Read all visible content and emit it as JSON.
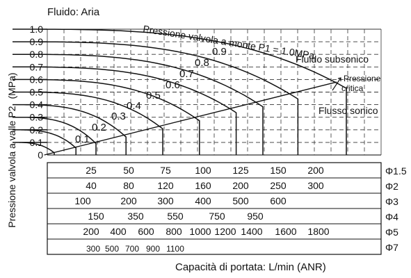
{
  "chart_data": {
    "type": "line",
    "title": "Fluido: Aria",
    "xlabel": "Capacità di portata: L/min (ANR)",
    "ylabel": "Pressione valvola a valle P2",
    "yunit": "(MPa)",
    "ylim": [
      0,
      1.0
    ],
    "yticks": [
      "0",
      "0.1",
      "0.2",
      "0.3",
      "0.4",
      "0.5",
      "0.6",
      "0.7",
      "0.8",
      "0.9",
      "1.0"
    ],
    "grid": true,
    "curve_header": "Pressione valvola a monte P1 = 1.0MPa",
    "zone_labels": {
      "subsonic": "Fluido subsonico",
      "critical_line1": "Pressione",
      "critical_line2": "critica",
      "sonic": "Flusso sonico"
    },
    "series": [
      {
        "name": "0.1",
        "p1": 0.1,
        "max_flow_phi1_5": 25
      },
      {
        "name": "0.2",
        "p1": 0.2,
        "max_flow_phi1_5": 38
      },
      {
        "name": "0.3",
        "p1": 0.3,
        "max_flow_phi1_5": 50
      },
      {
        "name": "0.4",
        "p1": 0.4,
        "max_flow_phi1_5": 68
      },
      {
        "name": "0.5",
        "p1": 0.5,
        "max_flow_phi1_5": 90
      },
      {
        "name": "0.6",
        "p1": 0.6,
        "max_flow_phi1_5": 112
      },
      {
        "name": "0.7",
        "p1": 0.7,
        "max_flow_phi1_5": 134
      },
      {
        "name": "0.8",
        "p1": 0.8,
        "max_flow_phi1_5": 150
      },
      {
        "name": "0.9",
        "p1": 0.9,
        "max_flow_phi1_5": 171
      },
      {
        "name": "1.0",
        "p1": 1.0,
        "max_flow_phi1_5": 200
      }
    ],
    "critical_line": {
      "p2_at_start": 0,
      "flow_start_phi1_5": 19,
      "p2_at_end": 0.53,
      "flow_end_phi1_5": 200
    },
    "flow_scales": [
      {
        "label": "Φ1.5",
        "ticks": [
          "25",
          "50",
          "75",
          "100",
          "125",
          "150",
          "200"
        ]
      },
      {
        "label": "Φ2",
        "ticks": [
          "40",
          "80",
          "120",
          "160",
          "200",
          "250",
          "300"
        ]
      },
      {
        "label": "Φ3",
        "ticks": [
          "100",
          "200",
          "300",
          "400",
          "500",
          "600"
        ]
      },
      {
        "label": "Φ4",
        "ticks": [
          "150",
          "350",
          "550",
          "750",
          "950"
        ]
      },
      {
        "label": "Φ5",
        "ticks": [
          "200",
          "400",
          "600",
          "800",
          "1000",
          "1200",
          "1400",
          "1600",
          "1800"
        ]
      },
      {
        "label": "Φ7",
        "ticks": [
          "300",
          "500",
          "700",
          "900",
          "1100"
        ]
      }
    ]
  }
}
